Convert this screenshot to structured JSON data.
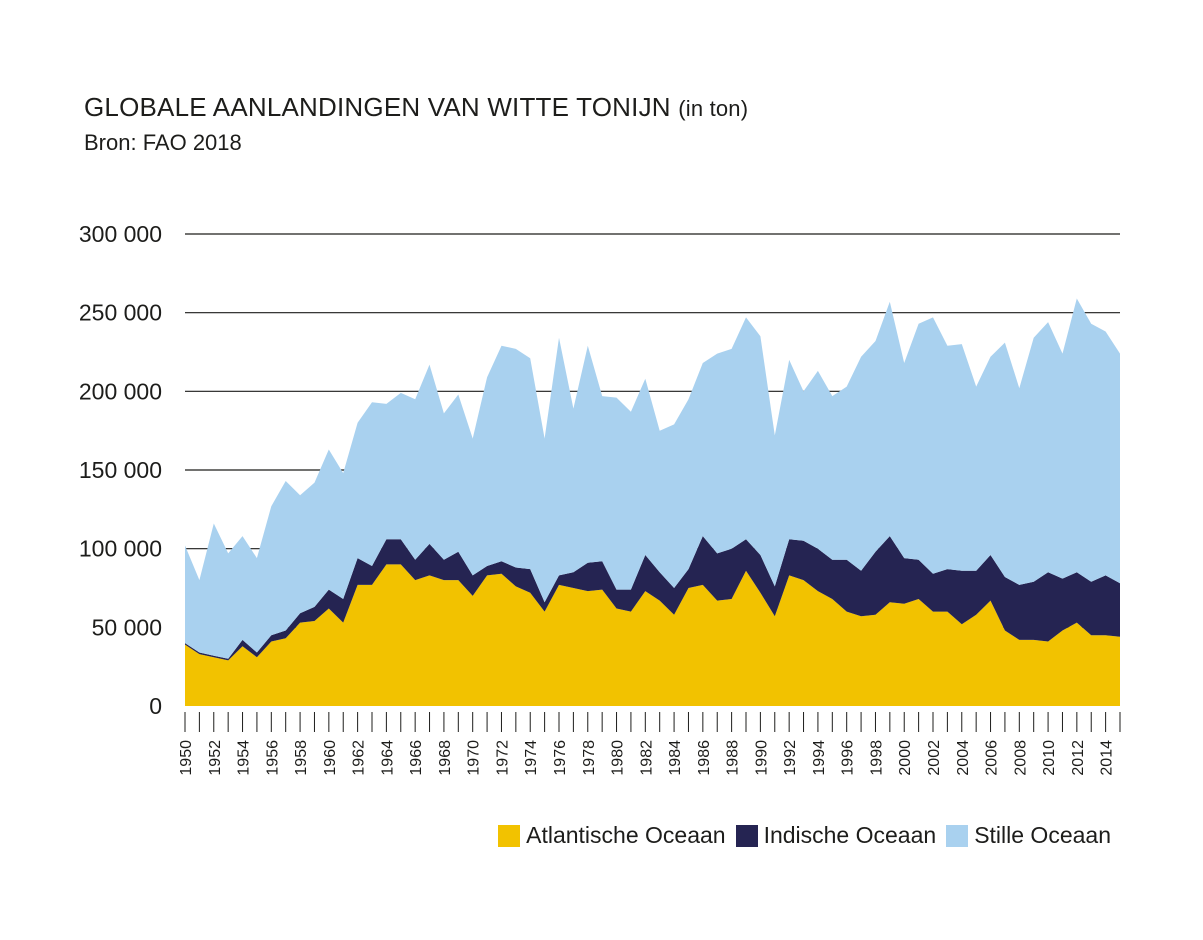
{
  "title": "GLOBALE AANLANDINGEN VAN WITTE TONIJN",
  "title_unit": "(in ton)",
  "subtitle": "Bron: FAO 2018",
  "colors": {
    "atlantic": "#f2c200",
    "indian": "#252452",
    "pacific": "#a9d1ef"
  },
  "chart_data": {
    "type": "area",
    "stacked": true,
    "title": "GLOBALE AANLANDINGEN VAN WITTE TONIJN (in ton)",
    "xlabel": "",
    "ylabel": "",
    "x": [
      1950,
      1951,
      1952,
      1953,
      1954,
      1955,
      1956,
      1957,
      1958,
      1959,
      1960,
      1961,
      1962,
      1963,
      1964,
      1965,
      1966,
      1967,
      1968,
      1969,
      1970,
      1971,
      1972,
      1973,
      1974,
      1975,
      1976,
      1977,
      1978,
      1979,
      1980,
      1981,
      1982,
      1983,
      1984,
      1985,
      1986,
      1987,
      1988,
      1989,
      1990,
      1991,
      1992,
      1993,
      1994,
      1995,
      1996,
      1997,
      1998,
      1999,
      2000,
      2001,
      2002,
      2003,
      2004,
      2005,
      2006,
      2007,
      2008,
      2009,
      2010,
      2011,
      2012,
      2013,
      2014,
      2015
    ],
    "x_tick_labels": [
      "1950",
      "1952",
      "1954",
      "1956",
      "1958",
      "1960",
      "1962",
      "1964",
      "1966",
      "1968",
      "1970",
      "1972",
      "1974",
      "1976",
      "1978",
      "1980",
      "1982",
      "1984",
      "1986",
      "1988",
      "1990",
      "1992",
      "1994",
      "1996",
      "1998",
      "2000",
      "2002",
      "2004",
      "2006",
      "2008",
      "2010",
      "2012",
      "2014"
    ],
    "y_tick_labels": [
      "0",
      "50 000",
      "100 000",
      "150 000",
      "200 000",
      "250 000",
      "300 000"
    ],
    "ylim": [
      0,
      300000
    ],
    "grid": true,
    "legend_position": "bottom-right",
    "series": [
      {
        "name": "Atlantische Oceaan",
        "color_key": "atlantic",
        "values": [
          39000,
          33000,
          31000,
          29000,
          38000,
          31000,
          41000,
          43000,
          53000,
          54000,
          62000,
          53000,
          77000,
          77000,
          90000,
          90000,
          80000,
          83000,
          80000,
          80000,
          70000,
          83000,
          84000,
          76000,
          72000,
          60000,
          77000,
          75000,
          73000,
          74000,
          62000,
          60000,
          73000,
          67000,
          58000,
          75000,
          77000,
          67000,
          68000,
          86000,
          72000,
          57000,
          83000,
          80000,
          73000,
          68000,
          60000,
          57000,
          58000,
          66000,
          65000,
          68000,
          60000,
          60000,
          52000,
          58000,
          67000,
          48000,
          42000,
          42000,
          41000,
          48000,
          53000,
          45000,
          45000,
          44000
        ]
      },
      {
        "name": "Indische Oceaan",
        "color_key": "indian",
        "values": [
          1000,
          1000,
          1000,
          1000,
          4000,
          3000,
          4000,
          5000,
          6000,
          9000,
          12000,
          15000,
          17000,
          12000,
          16000,
          16000,
          13000,
          20000,
          13000,
          18000,
          13000,
          6000,
          8000,
          12000,
          15000,
          6000,
          6000,
          10000,
          18000,
          18000,
          12000,
          14000,
          23000,
          18000,
          17000,
          12000,
          31000,
          30000,
          32000,
          20000,
          24000,
          19000,
          23000,
          25000,
          27000,
          25000,
          33000,
          29000,
          40000,
          42000,
          29000,
          25000,
          24000,
          27000,
          34000,
          28000,
          29000,
          34000,
          35000,
          37000,
          44000,
          33000,
          32000,
          34000,
          38000,
          34000
        ]
      },
      {
        "name": "Stille Oceaan",
        "color_key": "pacific",
        "values": [
          62000,
          46000,
          84000,
          67000,
          66000,
          60000,
          82000,
          95000,
          75000,
          79000,
          89000,
          80000,
          86000,
          104000,
          86000,
          93000,
          102000,
          114000,
          93000,
          100000,
          87000,
          120000,
          137000,
          139000,
          134000,
          104000,
          151000,
          104000,
          138000,
          105000,
          122000,
          113000,
          112000,
          90000,
          104000,
          108000,
          110000,
          127000,
          127000,
          141000,
          139000,
          96000,
          114000,
          95000,
          113000,
          104000,
          110000,
          136000,
          134000,
          149000,
          124000,
          150000,
          163000,
          142000,
          144000,
          117000,
          126000,
          149000,
          125000,
          155000,
          159000,
          143000,
          174000,
          164000,
          155000,
          146000
        ]
      }
    ]
  },
  "legend": {
    "atlantic_label": "Atlantische Oceaan",
    "indian_label": "Indische Oceaan",
    "pacific_label": "Stille Oceaan"
  }
}
